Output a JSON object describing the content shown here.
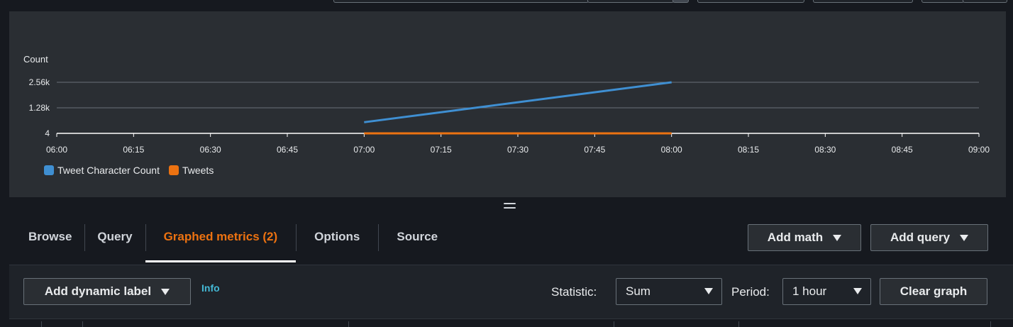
{
  "chart_data": {
    "type": "line",
    "ylabel": "Count",
    "y_ticks": [
      "4",
      "1.28k",
      "2.56k"
    ],
    "x_ticks": [
      "06:00",
      "06:15",
      "06:30",
      "06:45",
      "07:00",
      "07:15",
      "07:30",
      "07:45",
      "08:00",
      "08:15",
      "08:30",
      "08:45",
      "09:00"
    ],
    "xlim": [
      "06:00",
      "09:00"
    ],
    "ylim": [
      4,
      2560
    ],
    "grid": true,
    "legend": "bottom-left",
    "series": [
      {
        "name": "Tweet Character Count",
        "color": "#3f8fd2",
        "points": [
          {
            "x": "07:00",
            "y": 560
          },
          {
            "x": "08:00",
            "y": 2560
          }
        ]
      },
      {
        "name": "Tweets",
        "color": "#ec7211",
        "points": [
          {
            "x": "07:00",
            "y": 4
          },
          {
            "x": "08:00",
            "y": 4
          }
        ]
      }
    ]
  },
  "tabs": [
    {
      "label": "Browse",
      "active": false
    },
    {
      "label": "Query",
      "active": false
    },
    {
      "label": "Graphed metrics (2)",
      "active": true
    },
    {
      "label": "Options",
      "active": false
    },
    {
      "label": "Source",
      "active": false
    }
  ],
  "actions": {
    "add_math": "Add math",
    "add_query": "Add query"
  },
  "options": {
    "add_dynamic_label": "Add dynamic label",
    "info": "Info",
    "statistic_label": "Statistic:",
    "statistic_value": "Sum",
    "period_label": "Period:",
    "period_value": "1 hour",
    "clear_graph": "Clear graph"
  },
  "colors": {
    "accent": "#ec7211",
    "link": "#44b9d6",
    "panel": "#2a2e33"
  }
}
